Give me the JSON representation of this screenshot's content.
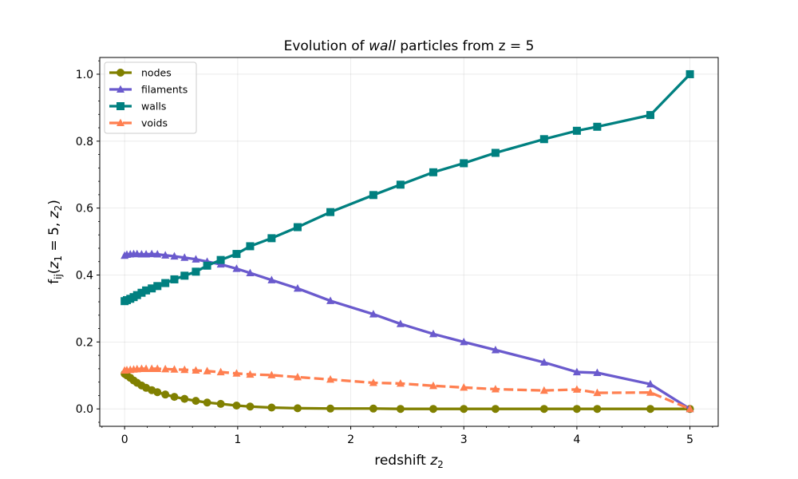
{
  "chart_data": {
    "type": "line",
    "title_parts": [
      "Evolution of ",
      "wall",
      " particles from z = 5"
    ],
    "xlabel_parts": [
      "redshift ",
      "z",
      "2"
    ],
    "ylabel_parts": [
      "f",
      "ij",
      "(",
      "z",
      "1",
      " = 5, ",
      "z",
      "2",
      ")"
    ],
    "xlim": [
      -0.22,
      5.25
    ],
    "ylim": [
      -0.052,
      1.05
    ],
    "xticks": [
      0,
      1,
      2,
      3,
      4,
      5
    ],
    "xtick_labels": [
      "0",
      "1",
      "2",
      "3",
      "4",
      "5"
    ],
    "yticks": [
      0.0,
      0.2,
      0.4,
      0.6,
      0.8,
      1.0
    ],
    "ytick_labels": [
      "0.0",
      "0.2",
      "0.4",
      "0.6",
      "0.8",
      "1.0"
    ],
    "grid": true,
    "legend_position": "top-left",
    "x": [
      0,
      0.02,
      0.05,
      0.08,
      0.11,
      0.15,
      0.19,
      0.24,
      0.29,
      0.36,
      0.44,
      0.53,
      0.63,
      0.73,
      0.85,
      0.99,
      1.11,
      1.3,
      1.53,
      1.82,
      2.2,
      2.44,
      2.73,
      3.0,
      3.28,
      3.71,
      4.0,
      4.18,
      4.65,
      5.0
    ],
    "series": [
      {
        "name": "nodes",
        "color": "#808000",
        "marker": "circle",
        "linestyle": "solid",
        "values": [
          0.105,
          0.1,
          0.093,
          0.085,
          0.078,
          0.07,
          0.063,
          0.056,
          0.05,
          0.043,
          0.036,
          0.03,
          0.024,
          0.019,
          0.015,
          0.01,
          0.007,
          0.004,
          0.002,
          0.001,
          0.001,
          0.0,
          0.0,
          0.0,
          0.0,
          0.0,
          0.0,
          0.0,
          0.0,
          0.0
        ]
      },
      {
        "name": "filaments",
        "color": "#6a5acd",
        "marker": "triangle",
        "linestyle": "solid",
        "values": [
          0.458,
          0.461,
          0.462,
          0.463,
          0.463,
          0.462,
          0.462,
          0.463,
          0.462,
          0.459,
          0.456,
          0.452,
          0.447,
          0.44,
          0.432,
          0.419,
          0.406,
          0.385,
          0.36,
          0.323,
          0.283,
          0.254,
          0.224,
          0.2,
          0.176,
          0.139,
          0.11,
          0.108,
          0.074,
          0.0
        ]
      },
      {
        "name": "walls",
        "color": "#008080",
        "marker": "square",
        "linestyle": "solid",
        "values": [
          0.322,
          0.325,
          0.329,
          0.334,
          0.34,
          0.347,
          0.354,
          0.36,
          0.367,
          0.376,
          0.387,
          0.398,
          0.41,
          0.428,
          0.445,
          0.463,
          0.486,
          0.51,
          0.543,
          0.588,
          0.639,
          0.67,
          0.707,
          0.734,
          0.765,
          0.806,
          0.831,
          0.843,
          0.878,
          1.0
        ]
      },
      {
        "name": "voids",
        "color": "#ff7f50",
        "marker": "triangle",
        "linestyle": "dashed",
        "values": [
          0.115,
          0.116,
          0.117,
          0.118,
          0.119,
          0.12,
          0.12,
          0.12,
          0.12,
          0.119,
          0.118,
          0.117,
          0.115,
          0.113,
          0.11,
          0.106,
          0.103,
          0.101,
          0.095,
          0.088,
          0.078,
          0.076,
          0.069,
          0.064,
          0.059,
          0.055,
          0.058,
          0.048,
          0.049,
          0.0
        ]
      }
    ]
  }
}
